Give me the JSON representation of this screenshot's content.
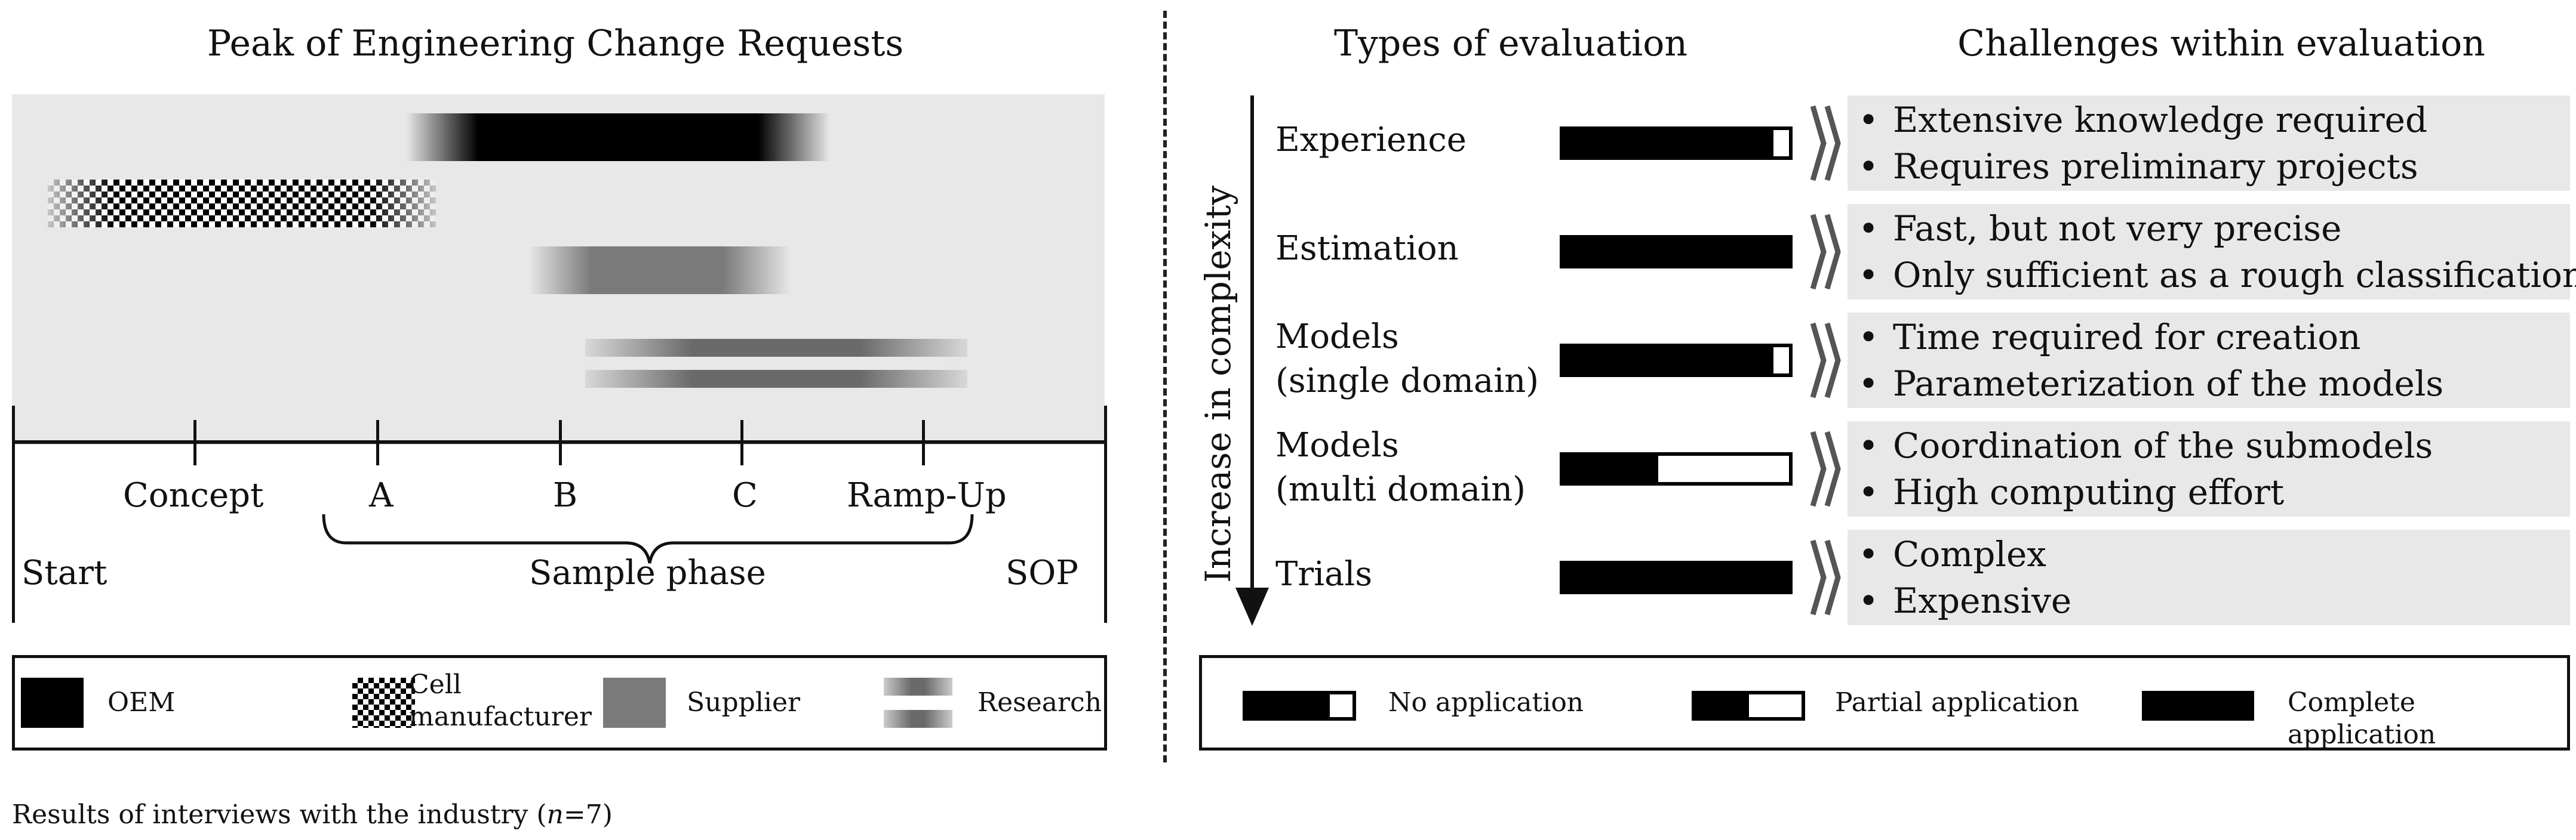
{
  "left_title": "Peak of Engineering Change Requests",
  "left_timeline": {
    "milestones": [
      "Concept",
      "A",
      "B",
      "C",
      "Ramp-Up"
    ],
    "start": "Start",
    "sop": "SOP",
    "sample_phase": "Sample phase"
  },
  "left_legend": {
    "oem": "OEM",
    "cell_manufacturer": "Cell manufacturer",
    "supplier": "Supplier",
    "research": "Research"
  },
  "footnote_prefix": "Results of interviews with the industry (",
  "footnote_n": "n",
  "footnote_suffix": "=7)",
  "right_titles": {
    "types": "Types of evaluation",
    "challenges": "Challenges within evaluation"
  },
  "axis_label": "Increase in complexity",
  "evaluations": [
    {
      "type_line1": "Experience",
      "type_line2": "",
      "application_fill": 0.93,
      "challenges": [
        "Extensive knowledge required",
        "Requires preliminary projects"
      ]
    },
    {
      "type_line1": "Estimation",
      "type_line2": "",
      "application_fill": 1.0,
      "challenges": [
        "Fast, but not very precise",
        "Only sufficient as a rough classification"
      ]
    },
    {
      "type_line1": "Models",
      "type_line2": "(single domain)",
      "application_fill": 0.93,
      "challenges": [
        "Time required for creation",
        "Parameterization of the models"
      ]
    },
    {
      "type_line1": "Models",
      "type_line2": "(multi domain)",
      "application_fill": 0.42,
      "challenges": [
        "Coordination of the submodels",
        "High computing effort"
      ]
    },
    {
      "type_line1": "Trials",
      "type_line2": "",
      "application_fill": 1.0,
      "challenges": [
        "Complex",
        "Expensive"
      ]
    }
  ],
  "bullet": "•",
  "right_legend": {
    "no_application": "No application",
    "partial_application": "Partial application",
    "complete_application": "Complete application"
  },
  "colors": {
    "panel_gray": "#e8e8e8",
    "oem": "#000000",
    "supplier": "#7a7a7a",
    "arrow_gray": "#555555"
  }
}
